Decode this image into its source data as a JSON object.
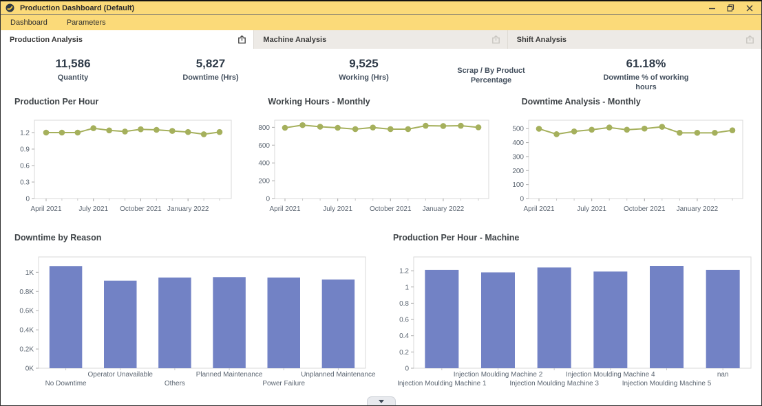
{
  "window": {
    "title": "Production Dashboard (Default)"
  },
  "menu": {
    "items": [
      "Dashboard",
      "Parameters"
    ]
  },
  "tabs": [
    {
      "label": "Production Analysis",
      "active": true
    },
    {
      "label": "Machine Analysis",
      "active": false
    },
    {
      "label": "Shift Analysis",
      "active": false
    }
  ],
  "kpis": [
    {
      "value": "11,586",
      "label": "Quantity"
    },
    {
      "value": "5,827",
      "label": "Downtime (Hrs)"
    },
    {
      "value": "9,525",
      "label": "Working (Hrs)"
    },
    {
      "value": "",
      "label": "Scrap / By Product Percentage"
    },
    {
      "value": "61.18%",
      "label": "Downtime % of working hours"
    }
  ],
  "colors": {
    "line": "#a5b05c",
    "bar": "#7282c5",
    "titlebar_yellow": "#fbda79"
  },
  "chart_data": [
    {
      "type": "line",
      "title": "Production Per Hour",
      "x": [
        "April 2021",
        "May 2021",
        "June 2021",
        "July 2021",
        "August 2021",
        "September 2021",
        "October 2021",
        "November 2021",
        "December 2021",
        "January 2022",
        "February 2022",
        "March 2022"
      ],
      "values": [
        1.2,
        1.2,
        1.2,
        1.28,
        1.24,
        1.22,
        1.26,
        1.25,
        1.23,
        1.21,
        1.17,
        1.21
      ],
      "ylim": [
        0,
        1.425
      ],
      "yticks": [
        0,
        0.3,
        0.6,
        0.9,
        1.2
      ],
      "ytick_labels": [
        "0",
        "0.3",
        "0.6",
        "0.9",
        "1.2"
      ],
      "xtick_indices": [
        0,
        3,
        6,
        9
      ],
      "xtick_labels": [
        "April 2021",
        "July 2021",
        "October 2021",
        "January 2022"
      ],
      "grid": false,
      "legend": "none",
      "color": "#a5b05c"
    },
    {
      "type": "line",
      "title": "Working Hours - Monthly",
      "x": [
        "April 2021",
        "May 2021",
        "June 2021",
        "July 2021",
        "August 2021",
        "September 2021",
        "October 2021",
        "November 2021",
        "December 2021",
        "January 2022",
        "February 2022",
        "March 2022"
      ],
      "values": [
        795,
        825,
        807,
        795,
        780,
        798,
        780,
        780,
        818,
        815,
        818,
        800
      ],
      "ylim": [
        0,
        880
      ],
      "yticks": [
        0,
        200,
        400,
        600,
        800
      ],
      "ytick_labels": [
        "0",
        "200",
        "400",
        "600",
        "800"
      ],
      "xtick_indices": [
        0,
        3,
        6,
        9
      ],
      "xtick_labels": [
        "April 2021",
        "July 2021",
        "October 2021",
        "January 2022"
      ],
      "grid": false,
      "legend": "none",
      "color": "#a5b05c"
    },
    {
      "type": "line",
      "title": "Downtime Analysis - Monthly",
      "x": [
        "April 2021",
        "May 2021",
        "June 2021",
        "July 2021",
        "August 2021",
        "September 2021",
        "October 2021",
        "November 2021",
        "December 2021",
        "January 2022",
        "February 2022",
        "March 2022"
      ],
      "values": [
        499,
        460,
        480,
        492,
        508,
        492,
        500,
        513,
        470,
        470,
        470,
        488
      ],
      "ylim": [
        0,
        560
      ],
      "yticks": [
        0,
        100,
        200,
        300,
        400,
        500
      ],
      "ytick_labels": [
        "0",
        "100",
        "200",
        "300",
        "400",
        "500"
      ],
      "xtick_indices": [
        0,
        3,
        6,
        9
      ],
      "xtick_labels": [
        "April 2021",
        "July 2021",
        "October 2021",
        "January 2022"
      ],
      "grid": false,
      "legend": "none",
      "color": "#a5b05c"
    },
    {
      "type": "bar",
      "title": "Downtime by Reason",
      "categories": [
        "No Downtime",
        "Operator Unavailable",
        "Others",
        "Planned Maintenance",
        "Power Failure",
        "Unplanned Maintenance"
      ],
      "values": [
        1065,
        912,
        945,
        950,
        945,
        925
      ],
      "ylim": [
        0,
        1160
      ],
      "yticks": [
        0,
        200,
        400,
        600,
        800,
        1000
      ],
      "ytick_labels": [
        "0K",
        "0.2K",
        "0.4K",
        "0.6K",
        "0.8K",
        "1K"
      ],
      "grid": false,
      "legend": "none",
      "color": "#7282c5"
    },
    {
      "type": "bar",
      "title": "Production Per Hour - Machine",
      "categories": [
        "Injection Moulding Machine 1",
        "Injection Moulding Machine 2",
        "Injection Moulding Machine 3",
        "Injection Moulding Machine 4",
        "Injection Moulding Machine 5",
        "nan"
      ],
      "values": [
        1.21,
        1.18,
        1.24,
        1.19,
        1.26,
        1.21
      ],
      "ylim": [
        0,
        1.37
      ],
      "yticks": [
        0,
        0.2,
        0.4,
        0.6,
        0.8,
        1,
        1.2
      ],
      "ytick_labels": [
        "0",
        "0.2",
        "0.4",
        "0.6",
        "0.8",
        "1",
        "1.2"
      ],
      "grid": false,
      "legend": "none",
      "color": "#7282c5"
    }
  ]
}
